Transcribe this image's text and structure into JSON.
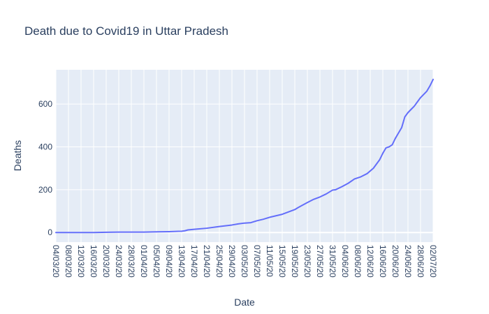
{
  "chart_data": {
    "type": "line",
    "title": "Death due to Covid19 in Uttar Pradesh",
    "xlabel": "Date",
    "ylabel": "Deaths",
    "x_tick_labels": [
      "04/03/20",
      "08/03/20",
      "12/03/20",
      "16/03/20",
      "20/03/20",
      "24/03/20",
      "28/03/20",
      "01/04/20",
      "05/04/20",
      "09/04/20",
      "13/04/20",
      "17/04/20",
      "21/04/20",
      "25/04/20",
      "29/04/20",
      "03/05/20",
      "07/05/20",
      "11/05/20",
      "15/05/20",
      "19/05/20",
      "23/05/20",
      "27/05/20",
      "31/05/20",
      "04/06/20",
      "08/06/20",
      "12/06/20",
      "16/06/20",
      "20/06/20",
      "24/06/20",
      "28/06/20",
      "02/07/20"
    ],
    "x_range": [
      "04/03/20",
      "02/07/20"
    ],
    "y_ticks": [
      0,
      200,
      400,
      600
    ],
    "ylim": [
      -45,
      760
    ],
    "grid": true,
    "colors": {
      "line": "#636efa",
      "plot_bg": "#e5ecf6",
      "grid": "#ffffff",
      "text": "#2a3f5f"
    },
    "series": [
      {
        "x": [
          "04/03/20",
          "08/03/20",
          "12/03/20",
          "16/03/20",
          "20/03/20",
          "24/03/20",
          "28/03/20",
          "01/04/20",
          "05/04/20",
          "09/04/20",
          "13/04/20",
          "14/04/20",
          "15/04/20",
          "17/04/20",
          "21/04/20",
          "25/04/20",
          "29/04/20",
          "01/05/20",
          "03/05/20",
          "05/05/20",
          "07/05/20",
          "09/05/20",
          "11/05/20",
          "13/05/20",
          "15/05/20",
          "17/05/20",
          "19/05/20",
          "20/05/20",
          "21/05/20",
          "23/05/20",
          "25/05/20",
          "27/05/20",
          "29/05/20",
          "31/05/20",
          "01/06/20",
          "03/06/20",
          "05/06/20",
          "07/06/20",
          "08/06/20",
          "09/06/20",
          "11/06/20",
          "13/06/20",
          "15/06/20",
          "16/06/20",
          "17/06/20",
          "18/06/20",
          "19/06/20",
          "20/06/20",
          "21/06/20",
          "22/06/20",
          "23/06/20",
          "24/06/20",
          "25/06/20",
          "26/06/20",
          "27/06/20",
          "28/06/20",
          "29/06/20",
          "30/06/20",
          "01/07/20",
          "02/07/20"
        ],
        "y": [
          0,
          0,
          0,
          0,
          1,
          2,
          2,
          2,
          3,
          4,
          6,
          8,
          12,
          15,
          20,
          28,
          35,
          40,
          44,
          46,
          55,
          62,
          71,
          78,
          85,
          96,
          107,
          116,
          124,
          140,
          155,
          166,
          180,
          198,
          200,
          214,
          230,
          250,
          255,
          260,
          275,
          300,
          340,
          370,
          395,
          400,
          410,
          440,
          465,
          490,
          540,
          560,
          575,
          590,
          610,
          630,
          645,
          660,
          685,
          715
        ]
      }
    ]
  }
}
